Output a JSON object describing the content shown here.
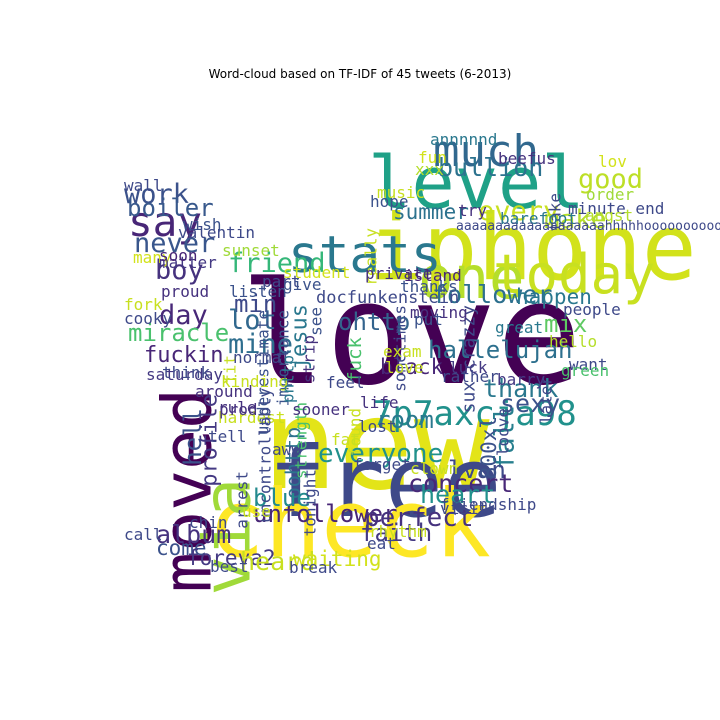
{
  "chart_data": {
    "type": "wordcloud",
    "title": "Word-cloud based on TF-IDF of 45 tweets (6-2013)",
    "colormap": "viridis",
    "mask_shape": "twitter-bird",
    "words": [
      {
        "text": "love",
        "weight": 1.0,
        "color": "#440154",
        "rotate": 0
      },
      {
        "text": "new",
        "weight": 0.9,
        "color": "#e3e418",
        "rotate": 0
      },
      {
        "text": "free",
        "weight": 0.72,
        "color": "#3e4989",
        "rotate": 0
      },
      {
        "text": "check",
        "weight": 0.7,
        "color": "#fde725",
        "rotate": 0
      },
      {
        "text": "iphone",
        "weight": 0.68,
        "color": "#d2e21b",
        "rotate": 0
      },
      {
        "text": "level",
        "weight": 0.55,
        "color": "#1fa187",
        "rotate": 0
      },
      {
        "text": "moved",
        "weight": 0.52,
        "color": "#440154",
        "rotate": 90
      },
      {
        "text": "via",
        "weight": 0.5,
        "color": "#a0da39",
        "rotate": 90
      },
      {
        "text": "one",
        "weight": 0.46,
        "color": "#b5de2b",
        "rotate": 0
      },
      {
        "text": "today",
        "weight": 0.42,
        "color": "#c8e020",
        "rotate": 0
      },
      {
        "text": "stats",
        "weight": 0.4,
        "color": "#2a788e",
        "rotate": 0
      },
      {
        "text": "much",
        "weight": 0.34,
        "color": "#31688e",
        "rotate": 0
      },
      {
        "text": "say",
        "weight": 0.32,
        "color": "#482677",
        "rotate": 0
      },
      {
        "text": "7p7axcja98",
        "weight": 0.26,
        "color": "#21918c",
        "rotate": 0
      },
      {
        "text": "good",
        "weight": 0.2,
        "color": "#bddf26",
        "rotate": 0
      },
      {
        "text": "bullion",
        "weight": 0.18,
        "color": "#2c728e",
        "rotate": 0
      },
      {
        "text": "work",
        "weight": 0.2,
        "color": "#3b528b",
        "rotate": 0
      },
      {
        "text": "boiler",
        "weight": 0.17,
        "color": "#38598c",
        "rotate": 0
      },
      {
        "text": "every",
        "weight": 0.2,
        "color": "#c8e020",
        "rotate": 0
      },
      {
        "text": "make",
        "weight": 0.19,
        "color": "#b5de2b",
        "rotate": 0
      },
      {
        "text": "summer",
        "weight": 0.15,
        "color": "#2c728e",
        "rotate": 0
      },
      {
        "text": "never",
        "weight": 0.2,
        "color": "#39568c",
        "rotate": 0
      },
      {
        "text": "friend",
        "weight": 0.2,
        "color": "#35b779",
        "rotate": 0
      },
      {
        "text": "boy",
        "weight": 0.2,
        "color": "#46327e",
        "rotate": 0
      },
      {
        "text": "min",
        "weight": 0.17,
        "color": "#3e4989",
        "rotate": 0
      },
      {
        "text": "day",
        "weight": 0.2,
        "color": "#482878",
        "rotate": 0
      },
      {
        "text": "lot",
        "weight": 0.2,
        "color": "#31688e",
        "rotate": 0
      },
      {
        "text": "mine",
        "weight": 0.2,
        "color": "#2e6e8e",
        "rotate": 0
      },
      {
        "text": "miracle",
        "weight": 0.17,
        "color": "#4ac16d",
        "rotate": 0
      },
      {
        "text": "fuckin",
        "weight": 0.16,
        "color": "#482677",
        "rotate": 0
      },
      {
        "text": "ohttp",
        "weight": 0.17,
        "color": "#33638d",
        "rotate": 0
      },
      {
        "text": "follower",
        "weight": 0.18,
        "color": "#2d708e",
        "rotate": 0
      },
      {
        "text": "happen",
        "weight": 0.15,
        "color": "#2a788e",
        "rotate": 0
      },
      {
        "text": "jesus",
        "weight": 0.16,
        "color": "#2a788e",
        "rotate": 90
      },
      {
        "text": "mix",
        "weight": 0.17,
        "color": "#5ec962",
        "rotate": 0
      },
      {
        "text": "hallelujah",
        "weight": 0.17,
        "color": "#2d708e",
        "rotate": 0
      },
      {
        "text": "black",
        "weight": 0.15,
        "color": "#482677",
        "rotate": 0
      },
      {
        "text": "sux crazzy",
        "weight": 0.12,
        "color": "#3e4989",
        "rotate": 90
      },
      {
        "text": "thank",
        "weight": 0.18,
        "color": "#2a788e",
        "rotate": 0
      },
      {
        "text": "sexy",
        "weight": 0.18,
        "color": "#3b528b",
        "rotate": 0
      },
      {
        "text": "fall",
        "weight": 0.2,
        "color": "#277f8e",
        "rotate": 90
      },
      {
        "text": "everyone",
        "weight": 0.19,
        "color": "#21918c",
        "rotate": 0
      },
      {
        "text": "concert",
        "weight": 0.18,
        "color": "#482878",
        "rotate": 0
      },
      {
        "text": "heart",
        "weight": 0.18,
        "color": "#21918c",
        "rotate": 0
      },
      {
        "text": "lvan",
        "weight": 0.17,
        "color": "#3e4989",
        "rotate": 0
      },
      {
        "text": "800xl",
        "weight": 0.15,
        "color": "#3b528b",
        "rotate": 90
      },
      {
        "text": "room",
        "weight": 0.17,
        "color": "#2a788e",
        "rotate": 0
      },
      {
        "text": "hell",
        "weight": 0.17,
        "color": "#3b528b",
        "rotate": 90
      },
      {
        "text": "profile",
        "weight": 0.16,
        "color": "#443983",
        "rotate": 90
      },
      {
        "text": "oohttp",
        "weight": 0.14,
        "color": "#2c728e",
        "rotate": 90
      },
      {
        "text": "unfollower",
        "weight": 0.17,
        "color": "#482677",
        "rotate": 0
      },
      {
        "text": "blue",
        "weight": 0.17,
        "color": "#238a8d",
        "rotate": 0
      },
      {
        "text": "perfect",
        "weight": 0.19,
        "color": "#46327e",
        "rotate": 0
      },
      {
        "text": "faith",
        "weight": 0.17,
        "color": "#443983",
        "rotate": 0
      },
      {
        "text": "album",
        "weight": 0.18,
        "color": "#46327e",
        "rotate": 0
      },
      {
        "text": "come",
        "weight": 0.15,
        "color": "#3b528b",
        "rotate": 0
      },
      {
        "text": "foreva2",
        "weight": 0.15,
        "color": "#443983",
        "rotate": 0
      },
      {
        "text": "heard",
        "weight": 0.18,
        "color": "#c8e020",
        "rotate": 0
      },
      {
        "text": "waiting",
        "weight": 0.15,
        "color": "#d2e21b",
        "rotate": 0
      },
      {
        "text": "fuck",
        "weight": 0.13,
        "color": "#4ac16d",
        "rotate": 90
      },
      {
        "text": "docfunkenstein",
        "weight": 0.11,
        "color": "#3e4989",
        "rotate": 0
      },
      {
        "text": "annnnnd",
        "weight": 0.1,
        "color": "#2a788e",
        "rotate": 0
      },
      {
        "text": "fun",
        "weight": 0.1,
        "color": "#d2e21b",
        "rotate": 0
      },
      {
        "text": "beefus",
        "weight": 0.1,
        "color": "#46327e",
        "rotate": 0
      },
      {
        "text": "lov",
        "weight": 0.1,
        "color": "#d2e21b",
        "rotate": 0
      },
      {
        "text": "xxx",
        "weight": 0.09,
        "color": "#b5de2b",
        "rotate": 0
      },
      {
        "text": "take",
        "weight": 0.09,
        "color": "#3e4989",
        "rotate": 90
      },
      {
        "text": "order",
        "weight": 0.09,
        "color": "#a0da39",
        "rotate": 0
      },
      {
        "text": "music",
        "weight": 0.1,
        "color": "#c8e020",
        "rotate": 0
      },
      {
        "text": "minute end",
        "weight": 0.09,
        "color": "#3e4989",
        "rotate": 0
      },
      {
        "text": "hope",
        "weight": 0.1,
        "color": "#3b528b",
        "rotate": 0
      },
      {
        "text": "try",
        "weight": 0.1,
        "color": "#46327e",
        "rotate": 0
      },
      {
        "text": "barefoot",
        "weight": 0.09,
        "color": "#2a788e",
        "rotate": 0
      },
      {
        "text": "angst",
        "weight": 0.09,
        "color": "#b5de2b",
        "rotate": 0
      },
      {
        "text": "aaaaaaaaaaaaaaaaaaahhhhhooooooooooo",
        "weight": 0.06,
        "color": "#3e4989",
        "rotate": 0
      },
      {
        "text": "wall",
        "weight": 0.1,
        "color": "#3e4989",
        "rotate": 0
      },
      {
        "text": "wish",
        "weight": 0.1,
        "color": "#3b528b",
        "rotate": 0
      },
      {
        "text": "valentin",
        "weight": 0.1,
        "color": "#3e4989",
        "rotate": 0
      },
      {
        "text": "sunset",
        "weight": 0.1,
        "color": "#a0da39",
        "rotate": 0
      },
      {
        "text": "really",
        "weight": 0.09,
        "color": "#c8e020",
        "rotate": 90
      },
      {
        "text": "many",
        "weight": 0.09,
        "color": "#d2e21b",
        "rotate": 0
      },
      {
        "text": "matter",
        "weight": 0.1,
        "color": "#443983",
        "rotate": 0
      },
      {
        "text": "soon",
        "weight": 0.1,
        "color": "#482677",
        "rotate": 0
      },
      {
        "text": "saturday",
        "weight": 0.1,
        "color": "#443983",
        "rotate": 0
      },
      {
        "text": "student",
        "weight": 0.1,
        "color": "#d2e21b",
        "rotate": 0
      },
      {
        "text": "private",
        "weight": 0.1,
        "color": "#46327e",
        "rotate": 0
      },
      {
        "text": "island",
        "weight": 0.1,
        "color": "#482677",
        "rotate": 0
      },
      {
        "text": "fork",
        "weight": 0.1,
        "color": "#c8e020",
        "rotate": 0
      },
      {
        "text": "part",
        "weight": 0.1,
        "color": "#3e4989",
        "rotate": 0
      },
      {
        "text": "give",
        "weight": 0.1,
        "color": "#3b528b",
        "rotate": 0
      },
      {
        "text": "thanks",
        "weight": 0.1,
        "color": "#3b528b",
        "rotate": 0
      },
      {
        "text": "people",
        "weight": 0.1,
        "color": "#3e4989",
        "rotate": 0
      },
      {
        "text": "proud",
        "weight": 0.1,
        "color": "#46327e",
        "rotate": 0
      },
      {
        "text": "listen",
        "weight": 0.1,
        "color": "#3b528b",
        "rotate": 0
      },
      {
        "text": "cooky",
        "weight": 0.1,
        "color": "#3e4989",
        "rotate": 0
      },
      {
        "text": "underestimate",
        "weight": 0.09,
        "color": "#3b528b",
        "rotate": 90
      },
      {
        "text": "moving",
        "weight": 0.1,
        "color": "#46327e",
        "rotate": 0
      },
      {
        "text": "put",
        "weight": 0.1,
        "color": "#3b528b",
        "rotate": 0
      },
      {
        "text": "great",
        "weight": 0.1,
        "color": "#2a788e",
        "rotate": 0
      },
      {
        "text": "importance",
        "weight": 0.09,
        "color": "#3b528b",
        "rotate": 90
      },
      {
        "text": "strip",
        "weight": 0.09,
        "color": "#46327e",
        "rotate": 90
      },
      {
        "text": "see",
        "weight": 0.09,
        "color": "#3b528b",
        "rotate": 90
      },
      {
        "text": "sometimes",
        "weight": 0.09,
        "color": "#3e4989",
        "rotate": 90
      },
      {
        "text": "hello",
        "weight": 0.1,
        "color": "#b5de2b",
        "rotate": 0
      },
      {
        "text": "fit",
        "weight": 0.1,
        "color": "#c8e020",
        "rotate": 90
      },
      {
        "text": "normal",
        "weight": 0.1,
        "color": "#3e4989",
        "rotate": 0
      },
      {
        "text": "think",
        "weight": 0.1,
        "color": "#3e4989",
        "rotate": 0
      },
      {
        "text": "kinding",
        "weight": 0.1,
        "color": "#c8e020",
        "rotate": 0
      },
      {
        "text": "around",
        "weight": 0.1,
        "color": "#46327e",
        "rotate": 0
      },
      {
        "text": "pnttp",
        "weight": 0.09,
        "color": "#2a788e",
        "rotate": 90
      },
      {
        "text": "exam",
        "weight": 0.1,
        "color": "#c8e020",
        "rotate": 0
      },
      {
        "text": "love",
        "weight": 0.1,
        "color": "#c8e020",
        "rotate": 0
      },
      {
        "text": "luck",
        "weight": 0.1,
        "color": "#443983",
        "rotate": 0
      },
      {
        "text": "want",
        "weight": 0.1,
        "color": "#3e4989",
        "rotate": 0
      },
      {
        "text": "green",
        "weight": 0.1,
        "color": "#4ac16d",
        "rotate": 0
      },
      {
        "text": "rather",
        "weight": 0.1,
        "color": "#3e4989",
        "rotate": 0
      },
      {
        "text": "feel",
        "weight": 0.1,
        "color": "#3e4989",
        "rotate": 0
      },
      {
        "text": "barry",
        "weight": 0.1,
        "color": "#443983",
        "rotate": 0
      },
      {
        "text": "later",
        "weight": 0.09,
        "color": "#3e4989",
        "rotate": 90
      },
      {
        "text": "rule",
        "weight": 0.09,
        "color": "#46327e",
        "rotate": 0
      },
      {
        "text": "hardest",
        "weight": 0.09,
        "color": "#c8e020",
        "rotate": 0
      },
      {
        "text": "uncontrollably",
        "weight": 0.09,
        "color": "#3e4989",
        "rotate": 90
      },
      {
        "text": "strength",
        "weight": 0.09,
        "color": "#4ac16d",
        "rotate": 90
      },
      {
        "text": "life",
        "weight": 0.1,
        "color": "#46327e",
        "rotate": 0
      },
      {
        "text": "lost",
        "weight": 0.1,
        "color": "#3e4989",
        "rotate": 0
      },
      {
        "text": "found",
        "weight": 0.09,
        "color": "#c8e020",
        "rotate": 90
      },
      {
        "text": "loove",
        "weight": 0.09,
        "color": "#3e4989",
        "rotate": 90
      },
      {
        "text": "tell",
        "weight": 0.1,
        "color": "#3e4989",
        "rotate": 0
      },
      {
        "text": "prod",
        "weight": 0.1,
        "color": "#46327e",
        "rotate": 0
      },
      {
        "text": "arrest",
        "weight": 0.09,
        "color": "#3e4989",
        "rotate": 90
      },
      {
        "text": "fat",
        "weight": 0.1,
        "color": "#c8e020",
        "rotate": 0
      },
      {
        "text": "aww",
        "weight": 0.1,
        "color": "#3e4989",
        "rotate": 0
      },
      {
        "text": "sooner",
        "weight": 0.1,
        "color": "#46327e",
        "rotate": 0
      },
      {
        "text": "tonight",
        "weight": 0.09,
        "color": "#3e4989",
        "rotate": 90
      },
      {
        "text": "forget",
        "weight": 0.1,
        "color": "#3e4989",
        "rotate": 0
      },
      {
        "text": "clown",
        "weight": 0.1,
        "color": "#c8e020",
        "rotate": 0
      },
      {
        "text": "friendship",
        "weight": 0.1,
        "color": "#3e4989",
        "rotate": 0
      },
      {
        "text": "visit",
        "weight": 0.1,
        "color": "#3e4989",
        "rotate": 0
      },
      {
        "text": "use",
        "weight": 0.1,
        "color": "#c8e020",
        "rotate": 0
      },
      {
        "text": "chin",
        "weight": 0.1,
        "color": "#3e4989",
        "rotate": 0
      },
      {
        "text": "call",
        "weight": 0.1,
        "color": "#3e4989",
        "rotate": 0
      },
      {
        "text": "rhythm",
        "weight": 0.1,
        "color": "#c8e020",
        "rotate": 0
      },
      {
        "text": "eat",
        "weight": 0.1,
        "color": "#3e4989",
        "rotate": 0
      },
      {
        "text": "best",
        "weight": 0.1,
        "color": "#3e4989",
        "rotate": 0
      },
      {
        "text": "break",
        "weight": 0.1,
        "color": "#3e4989",
        "rotate": 0
      },
      {
        "text": "better",
        "weight": 0.1,
        "color": "#46327e",
        "rotate": 0
      }
    ]
  }
}
